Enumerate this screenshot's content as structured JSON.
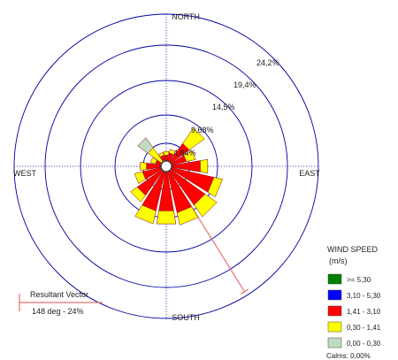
{
  "chart_data": {
    "type": "windrose",
    "directions": {
      "north": "NORTH",
      "south": "SOUTH",
      "east": "EAST",
      "west": "WEST"
    },
    "ring_labels": [
      "4,84%",
      "9,68%",
      "14,5%",
      "19,4%",
      "24,2%"
    ],
    "ring_values": [
      4.84,
      9.68,
      14.5,
      19.4,
      24.2
    ],
    "sector_width_deg": 22.5,
    "sectors": [
      {
        "direction_deg": 0,
        "values": [
          0,
          0,
          0.8,
          0.6,
          0
        ]
      },
      {
        "direction_deg": 22.5,
        "values": [
          0,
          0,
          1.2,
          0.6,
          0
        ]
      },
      {
        "direction_deg": 45,
        "values": [
          0,
          0,
          3.5,
          3.0,
          0
        ]
      },
      {
        "direction_deg": 67.5,
        "values": [
          0,
          0,
          2.3,
          1.5,
          0
        ]
      },
      {
        "direction_deg": 90,
        "values": [
          0,
          0,
          4.5,
          1.2,
          0
        ]
      },
      {
        "direction_deg": 112.5,
        "values": [
          0,
          0,
          6.8,
          1.4,
          0
        ]
      },
      {
        "direction_deg": 135,
        "values": [
          0,
          0,
          6.6,
          2.3,
          0
        ]
      },
      {
        "direction_deg": 157.5,
        "values": [
          0,
          0,
          6.6,
          2.0,
          0
        ]
      },
      {
        "direction_deg": 180,
        "values": [
          0,
          0,
          6.2,
          2.1,
          0
        ]
      },
      {
        "direction_deg": 202.5,
        "values": [
          0,
          0,
          6.3,
          2.1,
          0
        ]
      },
      {
        "direction_deg": 225,
        "values": [
          0,
          0,
          4.7,
          1.3,
          0
        ]
      },
      {
        "direction_deg": 247.5,
        "values": [
          0,
          0,
          2.9,
          1.3,
          0
        ]
      },
      {
        "direction_deg": 270,
        "values": [
          0,
          0,
          2.2,
          1.0,
          0
        ]
      },
      {
        "direction_deg": 292.5,
        "values": [
          0,
          0,
          0.8,
          0.8,
          0
        ]
      },
      {
        "direction_deg": 315,
        "values": [
          0,
          0,
          0,
          2.6,
          2.0
        ]
      },
      {
        "direction_deg": 337.5,
        "values": [
          0,
          0,
          0.8,
          0.5,
          0
        ]
      }
    ],
    "resultant_vector": {
      "label_title": "Resultant Vector",
      "label_value": "148 deg - 24%",
      "direction_deg": 148,
      "percent": 24
    },
    "legend": {
      "title_line1": "WIND SPEED",
      "title_line2": "(m/s)",
      "items": [
        {
          "label": ">= 5,30",
          "color": "#008000"
        },
        {
          "label": "3,10 - 5,30",
          "color": "#0000ff"
        },
        {
          "label": "1,41 - 3,10",
          "color": "#ff0000"
        },
        {
          "label": "0,30 - 1,41",
          "color": "#ffff00"
        },
        {
          "label": "0,00 - 0,30",
          "color": "#c0dcc0"
        }
      ],
      "calms": "Calms: 0,00%"
    },
    "colors": {
      "ring": "#0000a0",
      "vector": "#e87070"
    }
  }
}
